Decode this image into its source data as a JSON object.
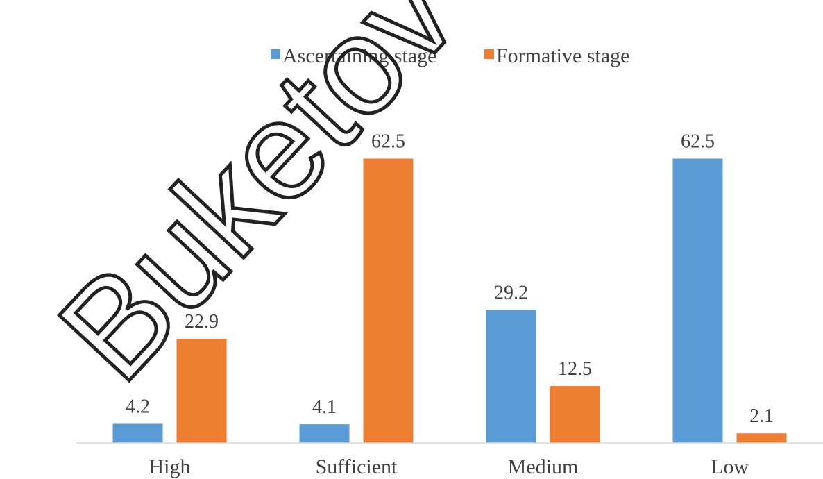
{
  "watermark": "Buketov",
  "chart_data": {
    "type": "bar",
    "categories": [
      "High",
      "Sufficient",
      "Medium",
      "Low"
    ],
    "series": [
      {
        "name": "Ascertaining stage",
        "color": "#5B9BD5",
        "values": [
          4.2,
          4.1,
          29.2,
          62.5
        ]
      },
      {
        "name": "Formative stage",
        "color": "#ED7D31",
        "values": [
          22.9,
          62.5,
          12.5,
          2.1
        ]
      }
    ],
    "ylim": [
      0,
      70
    ],
    "legend_position": "top-center",
    "grid": false,
    "axis_color": "#D9D9D9"
  }
}
